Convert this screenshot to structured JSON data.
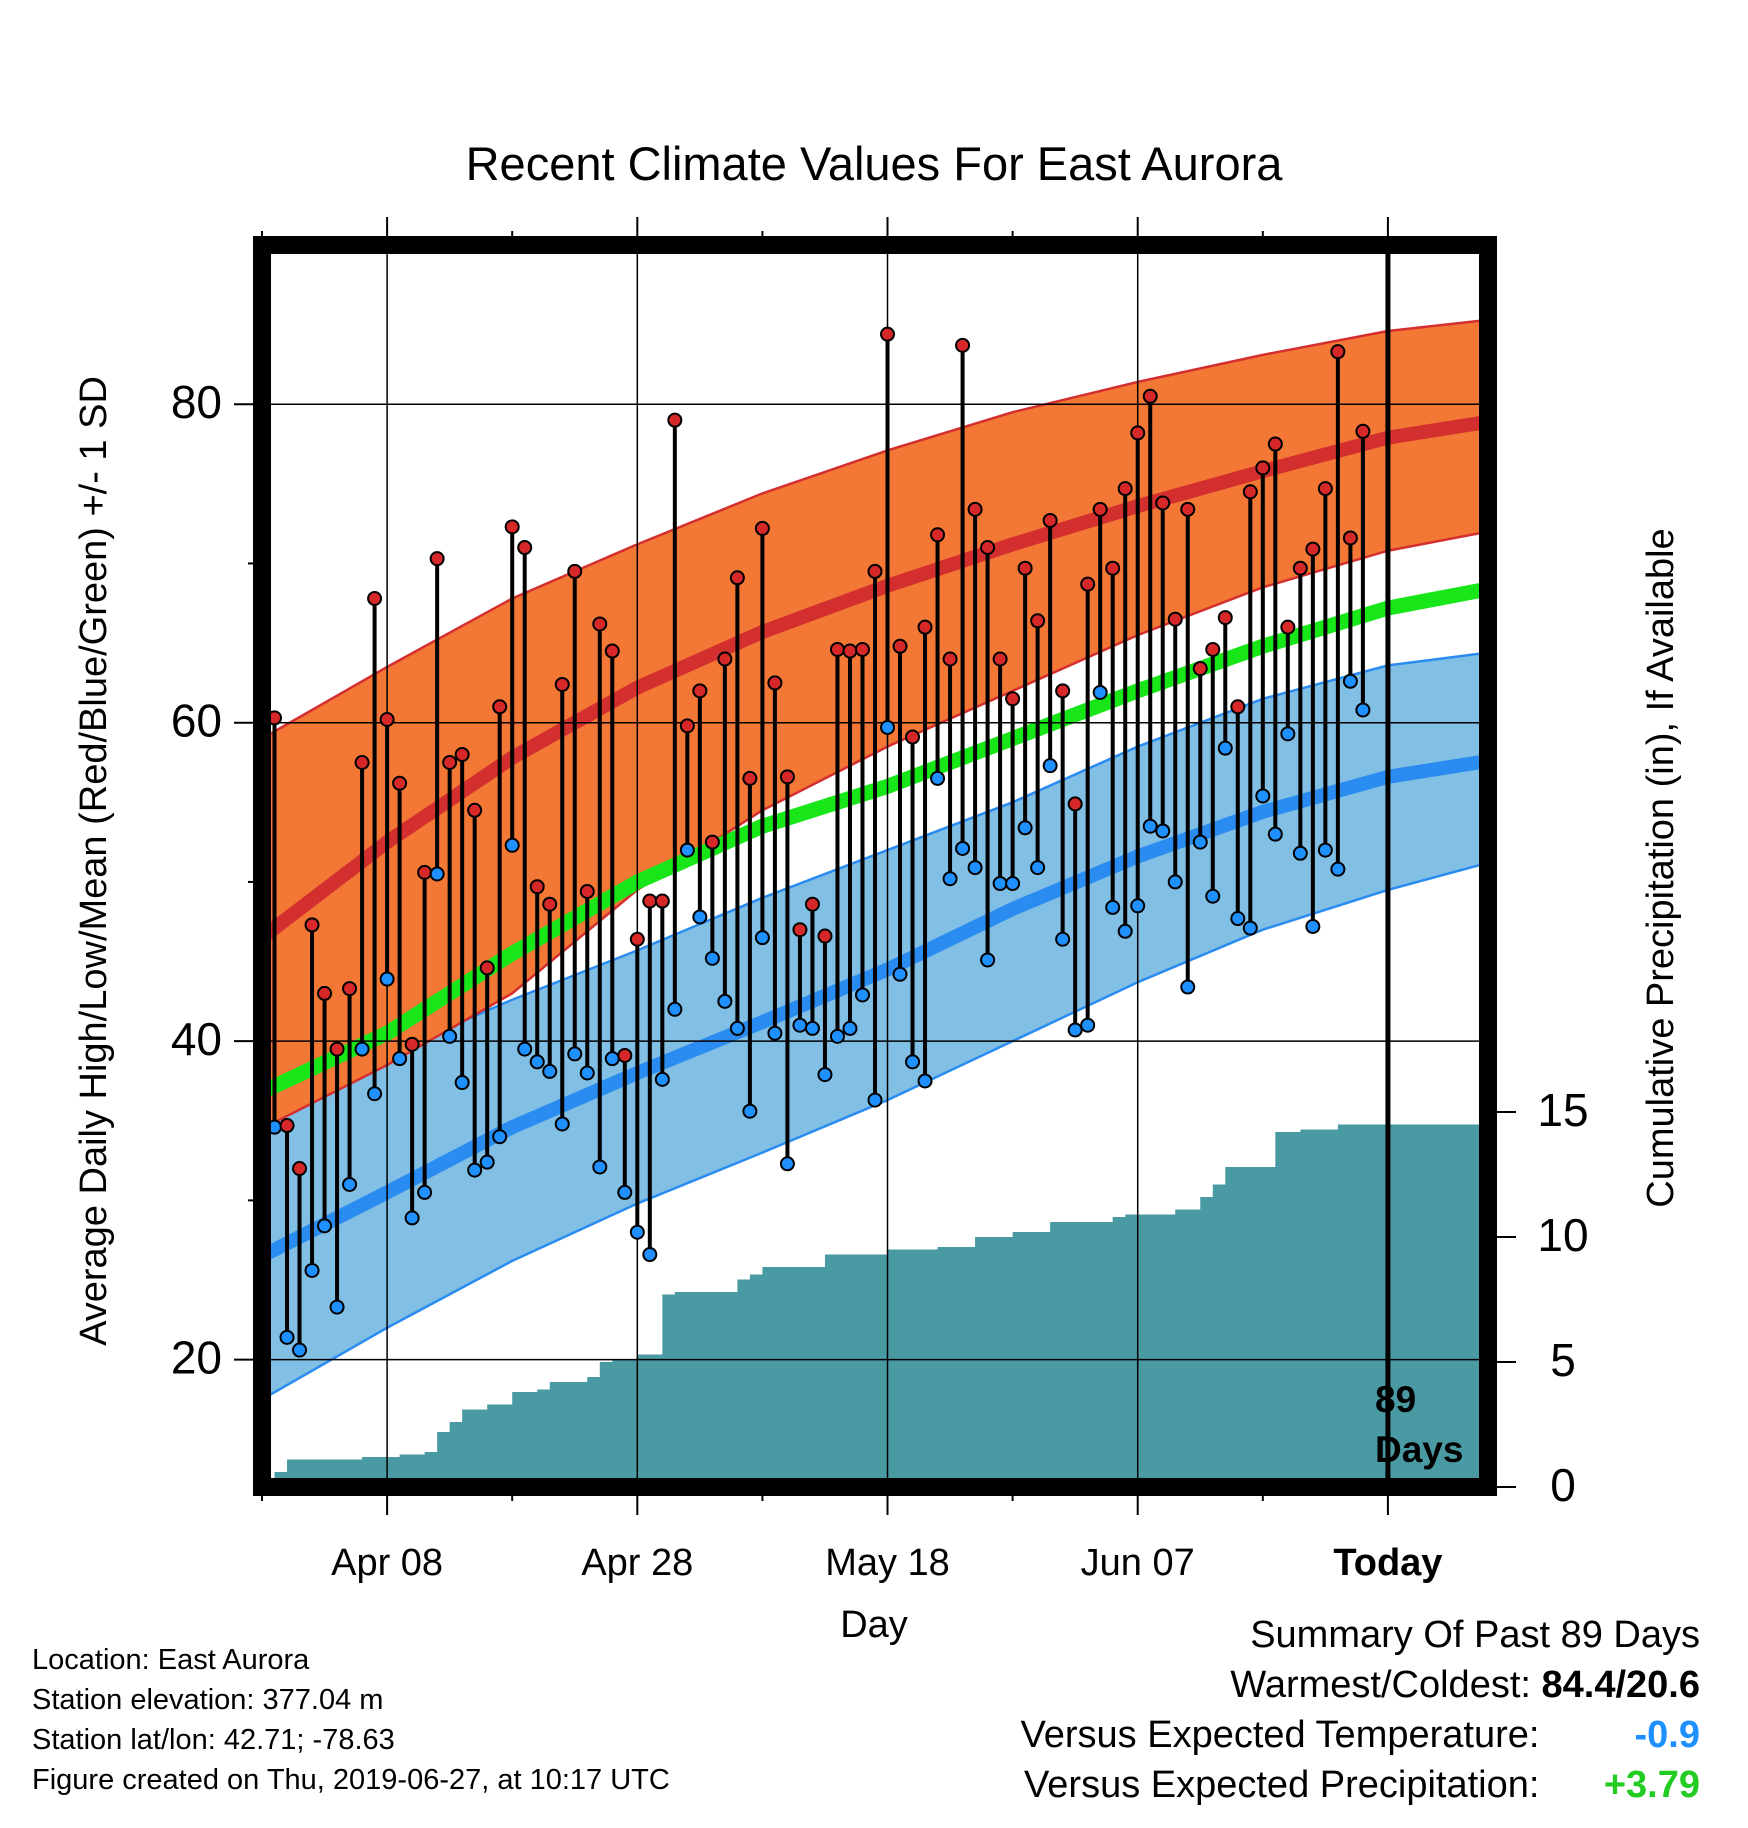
{
  "chart_data": {
    "type": "line",
    "title": "Recent Climate Values For East Aurora",
    "xlabel": "Day",
    "ylabel": "Average Daily High/Low/Mean (Red/Blue/Green) +/- 1 SD",
    "y2label": "Cumulative Precipitation (in), If Available",
    "ylim": [
      12,
      90
    ],
    "y2lim": [
      0,
      30
    ],
    "yticks": [
      20,
      40,
      60,
      80
    ],
    "y2ticks": [
      0,
      5,
      10,
      15
    ],
    "xlim": [
      -10,
      88
    ],
    "xticks": [
      {
        "day": 0,
        "label": "Apr 08"
      },
      {
        "day": 20,
        "label": "Apr 28"
      },
      {
        "day": 40,
        "label": "May 18"
      },
      {
        "day": 60,
        "label": "Jun 07"
      },
      {
        "day": 80,
        "label": "Today"
      }
    ],
    "today_day": 80,
    "days_label_num": "89",
    "days_label_word": "Days",
    "normals": {
      "day": [
        -10,
        0,
        10,
        20,
        30,
        40,
        50,
        60,
        70,
        80,
        88
      ],
      "high_upper": [
        59,
        63.5,
        67.8,
        71.2,
        74.4,
        77.1,
        79.5,
        81.4,
        83.1,
        84.6,
        85.3
      ],
      "high_mean": [
        46.5,
        52.5,
        57.8,
        62.2,
        65.7,
        68.6,
        71.2,
        73.6,
        75.8,
        77.9,
        78.9
      ],
      "high_lower": [
        34.5,
        38.5,
        43,
        49.5,
        54.5,
        58.5,
        62,
        65.5,
        68.5,
        70.8,
        72
      ],
      "mean": [
        36.8,
        40.5,
        45.5,
        50,
        53.5,
        56,
        59,
        62,
        64.8,
        67.2,
        68.4
      ],
      "low_upper": [
        35.2,
        39.2,
        42.6,
        45.7,
        49,
        52,
        55,
        58.5,
        61.5,
        63.6,
        64.4
      ],
      "low_mean": [
        26.5,
        30.5,
        34.6,
        38,
        41.2,
        44.5,
        48.3,
        51.6,
        54.4,
        56.6,
        57.6
      ],
      "low_lower": [
        17.5,
        22,
        26.2,
        29.8,
        33,
        36.3,
        40,
        43.7,
        47,
        49.5,
        51.2
      ]
    },
    "series": [
      {
        "name": "High",
        "color": "#d62828",
        "start_day": -10,
        "values": [
          54.5,
          60.3,
          34.7,
          32,
          47.3,
          43,
          39.5,
          43.3,
          57.5,
          67.8,
          60.2,
          56.2,
          39.8,
          50.6,
          70.3,
          57.5,
          58,
          54.5,
          44.6,
          61,
          72.3,
          71,
          49.7,
          48.6,
          62.4,
          69.5,
          49.4,
          66.2,
          64.5,
          39.1,
          46.4,
          48.8,
          48.8,
          79,
          59.8,
          62,
          52.5,
          64,
          69.1,
          56.5,
          72.2,
          62.5,
          56.6,
          47,
          48.6,
          46.6,
          64.6,
          64.5,
          64.6,
          69.5,
          84.4,
          64.8,
          59.1,
          66,
          71.8,
          64,
          83.7,
          73.4,
          71,
          64,
          61.5,
          69.7,
          66.4,
          72.7,
          62,
          54.9,
          68.7,
          73.4,
          69.7,
          74.7,
          78.2,
          80.5,
          73.8,
          66.5,
          73.4,
          63.4,
          64.6,
          66.6,
          61,
          74.5,
          76,
          77.5,
          66,
          69.7,
          70.9,
          74.7,
          83.3,
          71.6,
          78.3
        ]
      },
      {
        "name": "Low",
        "color": "#1e90ff",
        "start_day": -10,
        "values": [
          36.1,
          34.6,
          21.4,
          20.6,
          25.6,
          28.4,
          23.3,
          31,
          39.5,
          36.7,
          43.9,
          38.9,
          28.9,
          30.5,
          50.5,
          40.3,
          37.4,
          31.9,
          32.4,
          34,
          52.3,
          39.5,
          38.7,
          38.1,
          34.8,
          39.2,
          38,
          32.1,
          38.9,
          30.5,
          28,
          26.6,
          37.6,
          42,
          52,
          47.8,
          45.2,
          42.5,
          40.8,
          35.6,
          46.5,
          40.5,
          32.3,
          41,
          40.8,
          37.9,
          40.3,
          40.8,
          42.9,
          36.3,
          59.7,
          44.2,
          38.7,
          37.5,
          56.5,
          50.2,
          52.1,
          50.9,
          45.1,
          49.9,
          49.9,
          53.4,
          50.9,
          57.3,
          46.4,
          40.7,
          41,
          61.9,
          48.4,
          46.9,
          48.5,
          53.5,
          53.2,
          50,
          43.4,
          52.5,
          49.1,
          58.4,
          47.7,
          47.1,
          55.4,
          53,
          59.3,
          51.8,
          47.2,
          52,
          50.8,
          62.6,
          60.8
        ]
      }
    ],
    "precip": {
      "day": [
        -10,
        -9,
        -8,
        -5,
        -2,
        1,
        3,
        4,
        5,
        6,
        8,
        10,
        12,
        13,
        16,
        17,
        18,
        20,
        22,
        23,
        27,
        28,
        29,
        30,
        32,
        33,
        35,
        40,
        43,
        44,
        46,
        47,
        50,
        53,
        54,
        58,
        59,
        62,
        63,
        65,
        66,
        67,
        68,
        71,
        72,
        73,
        76,
        77,
        81,
        87.8
      ],
      "value": [
        0,
        0.6,
        1.1,
        1.1,
        1.2,
        1.3,
        1.4,
        2.2,
        2.6,
        3.1,
        3.3,
        3.8,
        3.9,
        4.2,
        4.4,
        5.0,
        5.1,
        5.3,
        7.7,
        7.8,
        7.8,
        8.3,
        8.5,
        8.8,
        8.8,
        8.8,
        9.3,
        9.5,
        9.5,
        9.6,
        9.6,
        10.0,
        10.2,
        10.6,
        10.6,
        10.8,
        10.9,
        10.9,
        11.1,
        11.6,
        12.1,
        12.8,
        12.8,
        14.2,
        14.2,
        14.3,
        14.5,
        14.5,
        14.5,
        14.5
      ]
    }
  },
  "footer": {
    "location": "Location: East Aurora",
    "elevation": "Station elevation: 377.04 m",
    "latlon": "Station lat/lon: 42.71; -78.63",
    "created": "Figure created on Thu, 2019-06-27, at 10:17 UTC"
  },
  "summary": {
    "title": "Summary Of Past 89 Days",
    "warmest_label": "Warmest/Coldest:",
    "warmest_value": "84.4/20.6",
    "temp_label": "Versus Expected Temperature:",
    "temp_value": "-0.9",
    "precip_label": "Versus Expected Precipitation:",
    "precip_value": "+3.79"
  },
  "colors": {
    "high_band": "#f37735",
    "high_line": "#d32f2f",
    "high_band_edge": "#d32f2f",
    "low_band": "#82bfe4",
    "low_line": "#2a8cf0",
    "mean_line": "#19e619",
    "precip_fill": "#4a9aa3",
    "temp_value": "#1e90ff",
    "precip_value": "#22cc22"
  }
}
